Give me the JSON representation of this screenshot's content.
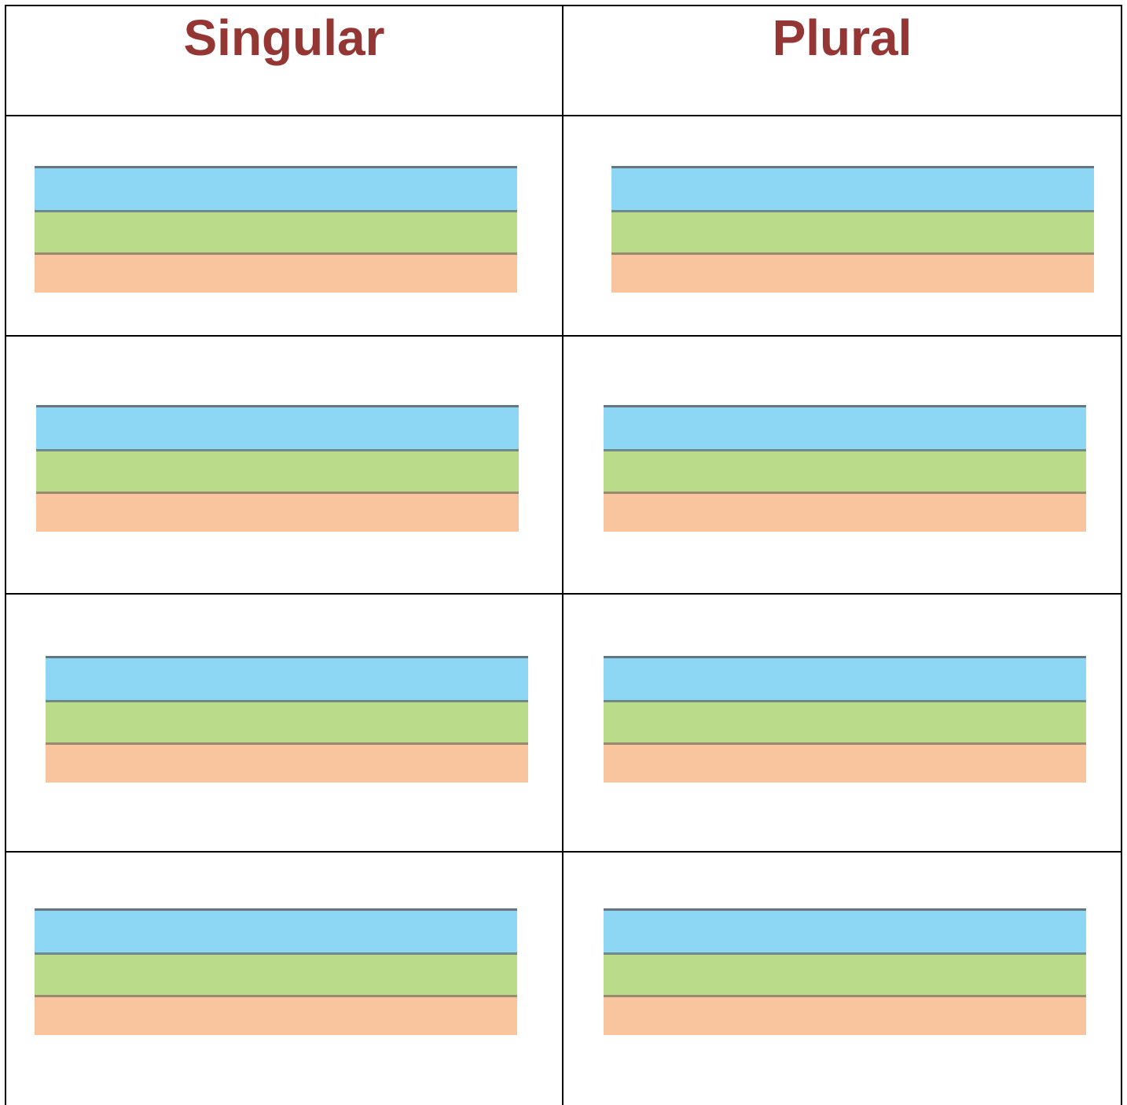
{
  "table": {
    "header": [
      "Singular",
      "Plural"
    ]
  }
}
